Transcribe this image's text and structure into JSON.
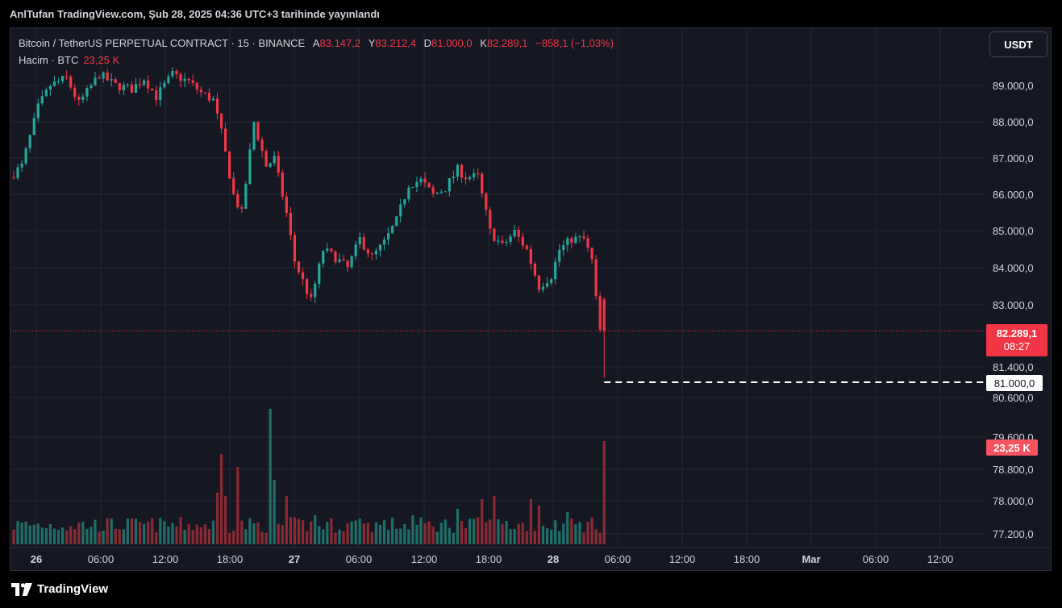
{
  "header": {
    "published": "AnlTufan TradingView.com, Şub 28, 2025 04:36 UTC+3 tarihinde yayınlandı"
  },
  "legend": {
    "symbol": "Bitcoin / TetherUS PERPETUAL CONTRACT · 15 · BINANCE",
    "open_label": "A",
    "open": "83.147,2",
    "high_label": "Y",
    "high": "83.212,4",
    "low_label": "D",
    "low": "81.000,0",
    "close_label": "K",
    "close": "82.289,1",
    "change": "−858,1 (−1,03%)",
    "volume_label": "Hacim · BTC",
    "volume": "23,25 K"
  },
  "currency_button": "USDT",
  "price_tag": {
    "price": "82.289,1",
    "countdown": "08:27"
  },
  "alert_tag": "81.000,0",
  "volume_tag": "23,25 K",
  "footer": {
    "brand": "TradingView"
  },
  "colors": {
    "up": "#26a69a",
    "down": "#f23645",
    "up_volume": "#1f6f68",
    "down_volume": "#8c2a33",
    "background": "#151823",
    "grid": "#242733"
  },
  "chart_data": {
    "type": "candlestick",
    "x_ticks": [
      "26",
      "06:00",
      "12:00",
      "18:00",
      "27",
      "06:00",
      "12:00",
      "18:00",
      "28",
      "06:00",
      "12:00",
      "18:00",
      "Mar",
      "06:00",
      "12:00"
    ],
    "y_ticks_price": [
      "89.000,0",
      "88.000,0",
      "87.000,0",
      "86.000,0",
      "85.000,0",
      "84.000,0",
      "83.000,0",
      "81.400,0",
      "80.600,0"
    ],
    "y_ticks_volume": [
      "79.600,0",
      "78.800,0",
      "78.000,0",
      "77.200,0"
    ],
    "ylim": [
      80600,
      89800
    ],
    "current_price": 82289.1,
    "alert_price": 81000,
    "last_candle": {
      "open": 83147.2,
      "high": 83212.4,
      "low": 81000.0,
      "close": 82289.1
    },
    "path_points": [
      [
        0,
        86500
      ],
      [
        3,
        86800
      ],
      [
        7,
        88400
      ],
      [
        10,
        89000
      ],
      [
        14,
        89200
      ],
      [
        17,
        88500
      ],
      [
        22,
        89300
      ],
      [
        26,
        89000
      ],
      [
        30,
        88900
      ],
      [
        33,
        89200
      ],
      [
        36,
        88700
      ],
      [
        40,
        89300
      ],
      [
        44,
        89100
      ],
      [
        47,
        88800
      ],
      [
        50,
        88600
      ],
      [
        52,
        87700
      ],
      [
        55,
        86000
      ],
      [
        57,
        85500
      ],
      [
        60,
        88000
      ],
      [
        63,
        86800
      ],
      [
        65,
        87000
      ],
      [
        68,
        85500
      ],
      [
        70,
        84200
      ],
      [
        74,
        83100
      ],
      [
        77,
        84500
      ],
      [
        80,
        84300
      ],
      [
        83,
        84000
      ],
      [
        86,
        84800
      ],
      [
        89,
        84300
      ],
      [
        92,
        84700
      ],
      [
        95,
        85300
      ],
      [
        98,
        86300
      ],
      [
        101,
        86400
      ],
      [
        104,
        86000
      ],
      [
        107,
        86200
      ],
      [
        110,
        86700
      ],
      [
        112,
        86500
      ],
      [
        115,
        86500
      ],
      [
        118,
        85000
      ],
      [
        121,
        84600
      ],
      [
        124,
        85000
      ],
      [
        127,
        84500
      ],
      [
        130,
        83500
      ],
      [
        133,
        83800
      ],
      [
        135,
        84500
      ],
      [
        138,
        84800
      ],
      [
        141,
        84800
      ],
      [
        143,
        84200
      ],
      [
        144,
        83147.2
      ],
      [
        145,
        82289.1
      ]
    ],
    "volume_spikes": [
      [
        50,
        1.6
      ],
      [
        51,
        2.8
      ],
      [
        52,
        1.5
      ],
      [
        55,
        2.4
      ],
      [
        63,
        4.2
      ],
      [
        64,
        2.0
      ],
      [
        67,
        1.5
      ],
      [
        74,
        0.9
      ],
      [
        85,
        0.8
      ],
      [
        98,
        0.9
      ],
      [
        109,
        1.1
      ],
      [
        115,
        1.4
      ],
      [
        118,
        1.5
      ],
      [
        127,
        1.4
      ],
      [
        129,
        1.2
      ],
      [
        136,
        1.0
      ],
      [
        145,
        3.2
      ]
    ]
  }
}
